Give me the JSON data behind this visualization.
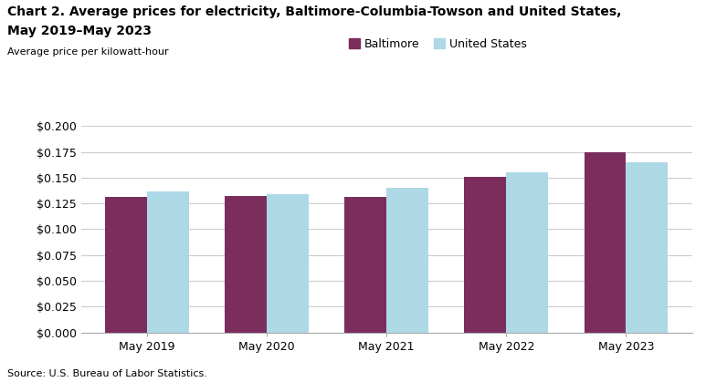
{
  "title_line1": "Chart 2. Average prices for electricity, Baltimore-Columbia-Towson and United States,",
  "title_line2": "May 2019–May 2023",
  "ylabel": "Average price per kilowatt-hour",
  "source": "Source: U.S. Bureau of Labor Statistics.",
  "categories": [
    "May 2019",
    "May 2020",
    "May 2021",
    "May 2022",
    "May 2023"
  ],
  "baltimore": [
    0.131,
    0.132,
    0.131,
    0.151,
    0.175
  ],
  "us": [
    0.137,
    0.134,
    0.14,
    0.155,
    0.165
  ],
  "baltimore_color": "#7B2D5E",
  "us_color": "#ADD8E6",
  "baltimore_label": "Baltimore",
  "us_label": "United States",
  "ylim": [
    0.0,
    0.2
  ],
  "yticks": [
    0.0,
    0.025,
    0.05,
    0.075,
    0.1,
    0.125,
    0.15,
    0.175,
    0.2
  ],
  "bar_width": 0.35,
  "background_color": "#ffffff",
  "grid_color": "#cccccc",
  "title_fontsize": 10,
  "ylabel_fontsize": 8,
  "tick_fontsize": 9,
  "source_fontsize": 8
}
